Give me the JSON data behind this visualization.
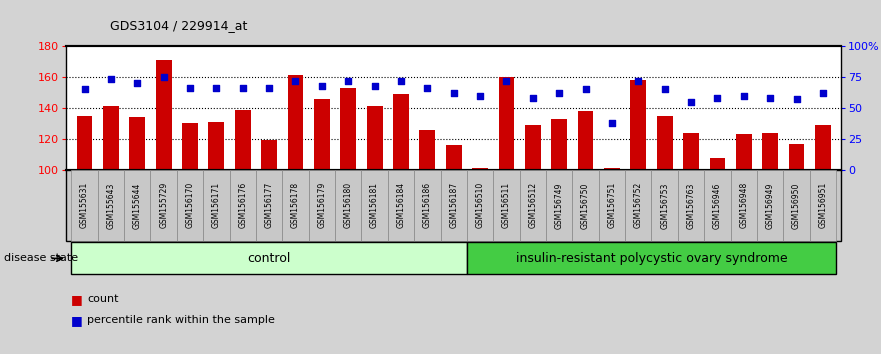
{
  "title": "GDS3104 / 229914_at",
  "samples": [
    "GSM155631",
    "GSM155643",
    "GSM155644",
    "GSM155729",
    "GSM156170",
    "GSM156171",
    "GSM156176",
    "GSM156177",
    "GSM156178",
    "GSM156179",
    "GSM156180",
    "GSM156181",
    "GSM156184",
    "GSM156186",
    "GSM156187",
    "GSM156510",
    "GSM156511",
    "GSM156512",
    "GSM156749",
    "GSM156750",
    "GSM156751",
    "GSM156752",
    "GSM156753",
    "GSM156763",
    "GSM156946",
    "GSM156948",
    "GSM156949",
    "GSM156950",
    "GSM156951"
  ],
  "bar_values": [
    135,
    141,
    134,
    171,
    130,
    131,
    139,
    119,
    161,
    146,
    153,
    141,
    149,
    126,
    116,
    101,
    160,
    129,
    133,
    138,
    101,
    158,
    135,
    124,
    108,
    123,
    124,
    117,
    129
  ],
  "percentile_values": [
    65,
    73,
    70,
    75,
    66,
    66,
    66,
    66,
    72,
    68,
    72,
    68,
    72,
    66,
    62,
    60,
    72,
    58,
    62,
    65,
    38,
    72,
    65,
    55,
    58,
    60,
    58,
    57,
    62
  ],
  "control_count": 15,
  "bar_color": "#CC0000",
  "dot_color": "#0000CC",
  "ylim_left": [
    100,
    180
  ],
  "yticks_left": [
    100,
    120,
    140,
    160,
    180
  ],
  "ylim_right": [
    0,
    100
  ],
  "yticks_right": [
    0,
    25,
    50,
    75,
    100
  ],
  "yticklabels_right": [
    "0",
    "25",
    "50",
    "75",
    "100%"
  ],
  "bg_color": "#D3D3D3",
  "plot_bg_color": "#FFFFFF",
  "xtick_bg_color": "#C8C8C8",
  "control_color": "#CCFFCC",
  "insulin_color": "#44CC44",
  "group_label_control": "control",
  "group_label_insulin": "insulin-resistant polycystic ovary syndrome",
  "disease_state_label": "disease state"
}
